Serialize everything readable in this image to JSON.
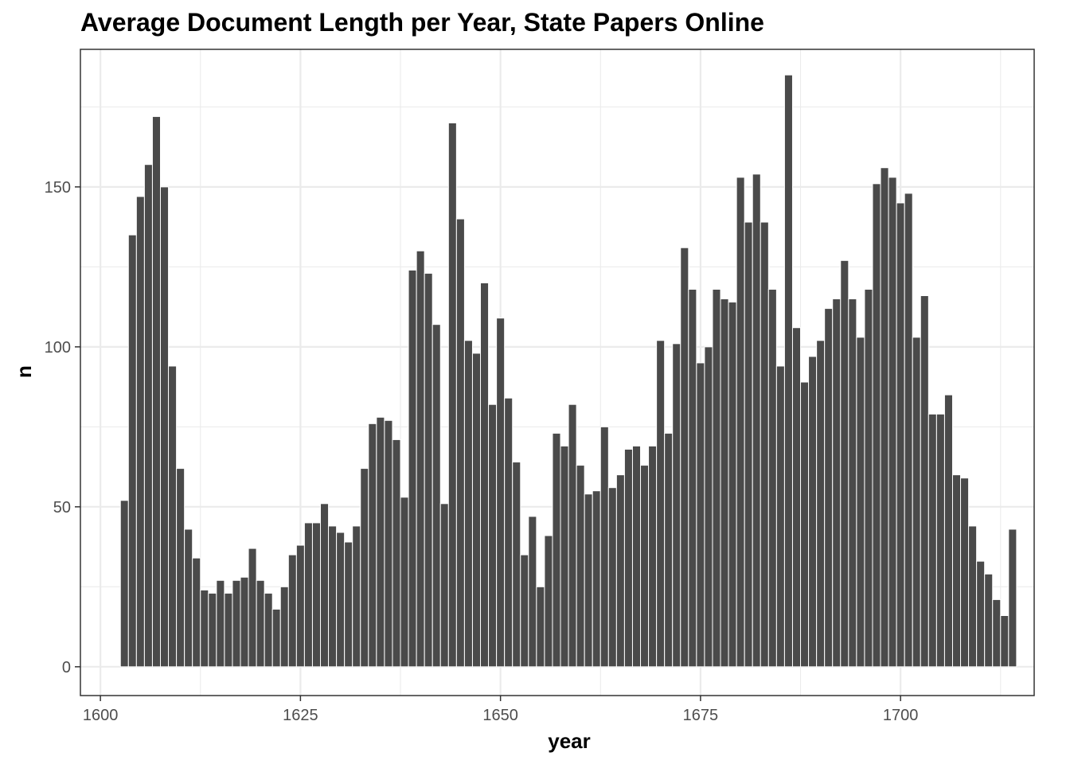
{
  "chart_data": {
    "type": "bar",
    "title": "Average Document Length per Year, State Papers Online",
    "xlabel": "year",
    "ylabel": "n",
    "xlim": [
      1597.5,
      1716.7
    ],
    "ylim": [
      -9,
      193
    ],
    "x_ticks": [
      1600,
      1625,
      1650,
      1675,
      1700
    ],
    "y_ticks": [
      0,
      50,
      100,
      150
    ],
    "grid": true,
    "legend": "none",
    "bar_color": "#4a4a4a",
    "x": [
      1603,
      1604,
      1605,
      1606,
      1607,
      1608,
      1609,
      1610,
      1611,
      1612,
      1613,
      1614,
      1615,
      1616,
      1617,
      1618,
      1619,
      1620,
      1621,
      1622,
      1623,
      1624,
      1625,
      1626,
      1627,
      1628,
      1629,
      1630,
      1631,
      1632,
      1633,
      1634,
      1635,
      1636,
      1637,
      1638,
      1639,
      1640,
      1641,
      1642,
      1643,
      1644,
      1645,
      1646,
      1647,
      1648,
      1649,
      1650,
      1651,
      1652,
      1653,
      1654,
      1655,
      1656,
      1657,
      1658,
      1659,
      1660,
      1661,
      1662,
      1663,
      1664,
      1665,
      1666,
      1667,
      1668,
      1669,
      1670,
      1671,
      1672,
      1673,
      1674,
      1675,
      1676,
      1677,
      1678,
      1679,
      1680,
      1681,
      1682,
      1683,
      1684,
      1685,
      1686,
      1687,
      1688,
      1689,
      1690,
      1691,
      1692,
      1693,
      1694,
      1695,
      1696,
      1697,
      1698,
      1699,
      1700,
      1701,
      1702,
      1703,
      1704,
      1705,
      1706,
      1707,
      1708,
      1709,
      1710,
      1711,
      1712,
      1713,
      1714
    ],
    "values": [
      52,
      135,
      147,
      157,
      172,
      150,
      94,
      62,
      43,
      34,
      24,
      23,
      27,
      23,
      27,
      28,
      37,
      27,
      23,
      18,
      25,
      35,
      38,
      45,
      45,
      51,
      44,
      42,
      39,
      44,
      62,
      76,
      78,
      77,
      71,
      53,
      124,
      130,
      123,
      107,
      51,
      170,
      140,
      102,
      98,
      120,
      82,
      109,
      84,
      64,
      35,
      47,
      25,
      41,
      73,
      69,
      82,
      63,
      54,
      55,
      75,
      56,
      60,
      68,
      69,
      63,
      69,
      102,
      73,
      101,
      131,
      118,
      95,
      100,
      118,
      115,
      114,
      153,
      139,
      154,
      139,
      118,
      94,
      185,
      106,
      89,
      97,
      102,
      112,
      115,
      127,
      115,
      103,
      118,
      151,
      156,
      153,
      145,
      148,
      103,
      116,
      79,
      79,
      85,
      60,
      59,
      44,
      33,
      29,
      21,
      16,
      43
    ]
  }
}
